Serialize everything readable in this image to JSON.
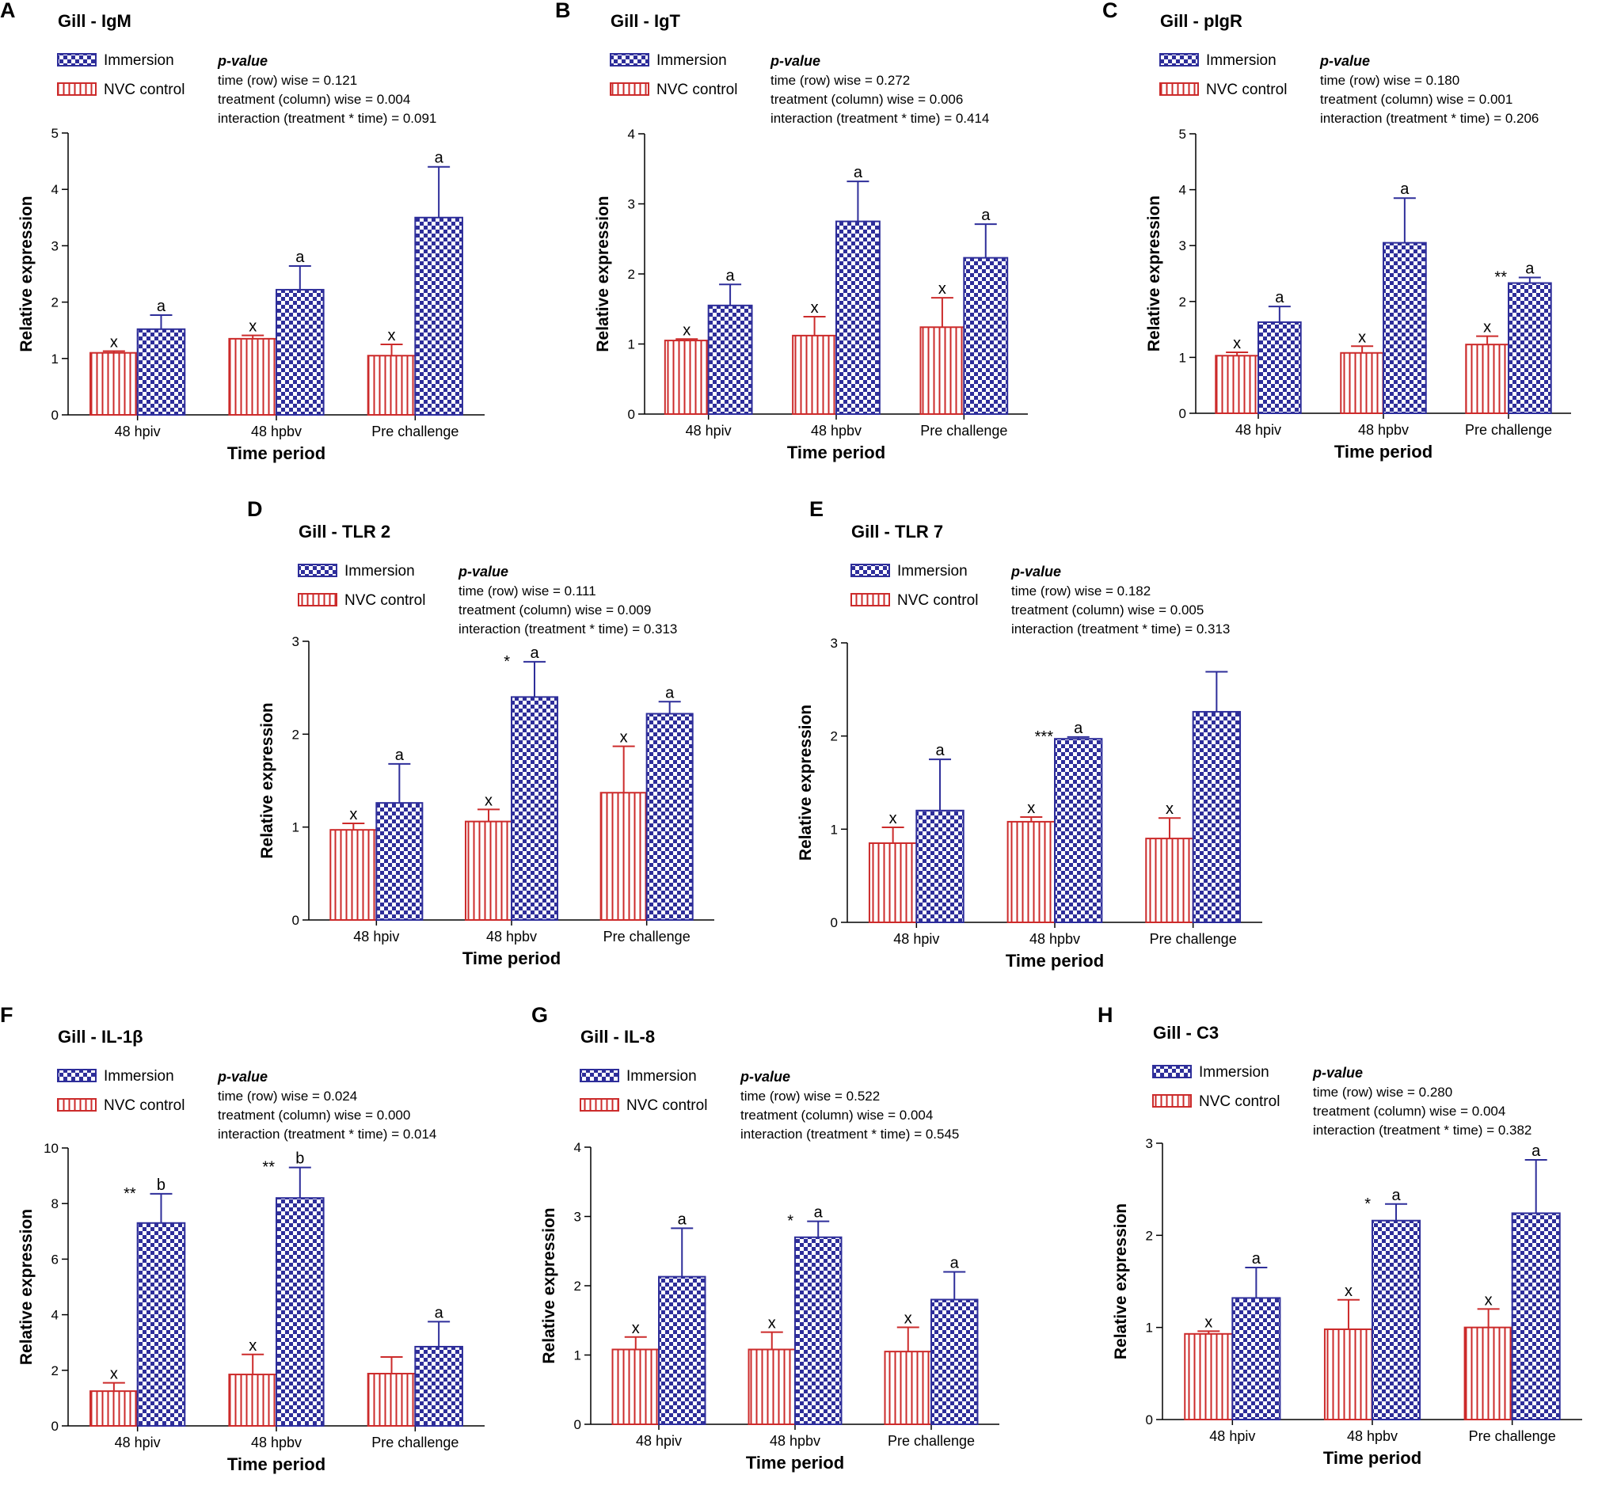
{
  "figure": {
    "categories": [
      "48 hpiv",
      "48 hpbv",
      "Pre challenge"
    ],
    "colors": {
      "immersion": "#2e2e9a",
      "control": "#cc2b2b",
      "axis": "#000000"
    },
    "legend": {
      "immersion": "Immersion",
      "control": "NVC control"
    },
    "pvalue_heading": "p-value",
    "xlabel": "Time period",
    "ylabel": "Relative expression"
  },
  "chart_data": [
    {
      "letter": "A",
      "title": "Gill - IgM",
      "type": "bar",
      "pvalues": [
        "time (row) wise = 0.121",
        "treatment (column) wise = 0.004",
        "interaction (treatment * time)  = 0.091"
      ],
      "ylim": [
        0,
        5
      ],
      "ticks": [
        "0",
        "1",
        "2",
        "3",
        "4",
        "5"
      ],
      "series": [
        {
          "name": "NVC control",
          "values": [
            1.1,
            1.35,
            1.05
          ],
          "errors": [
            0.03,
            0.06,
            0.2
          ],
          "labels": [
            "x",
            "x",
            "x"
          ],
          "stars": [
            "",
            "",
            ""
          ]
        },
        {
          "name": "Immersion",
          "values": [
            1.52,
            2.22,
            3.5
          ],
          "errors": [
            0.25,
            0.42,
            0.9
          ],
          "labels": [
            "a",
            "a",
            "a"
          ],
          "stars": [
            "",
            "",
            ""
          ]
        }
      ]
    },
    {
      "letter": "B",
      "title": "Gill - IgT",
      "type": "bar",
      "pvalues": [
        "time (row) wise = 0.272",
        "treatment (column) wise = 0.006",
        "interaction (treatment * time)  = 0.414"
      ],
      "ylim": [
        0,
        4
      ],
      "ticks": [
        "0",
        "1",
        "2",
        "3",
        "4"
      ],
      "series": [
        {
          "name": "NVC control",
          "values": [
            1.05,
            1.12,
            1.24
          ],
          "errors": [
            0.02,
            0.27,
            0.42
          ],
          "labels": [
            "x",
            "x",
            "x"
          ],
          "stars": [
            "",
            "",
            ""
          ]
        },
        {
          "name": "Immersion",
          "values": [
            1.55,
            2.75,
            2.23
          ],
          "errors": [
            0.3,
            0.57,
            0.48
          ],
          "labels": [
            "a",
            "a",
            "a"
          ],
          "stars": [
            "",
            "",
            ""
          ]
        }
      ]
    },
    {
      "letter": "C",
      "title": "Gill - pIgR",
      "type": "bar",
      "pvalues": [
        "time (row) wise = 0.180",
        "treatment (column) wise = 0.001",
        "interaction (treatment * time)  = 0.206"
      ],
      "ylim": [
        0,
        5
      ],
      "ticks": [
        "0",
        "1",
        "2",
        "3",
        "4",
        "5"
      ],
      "series": [
        {
          "name": "NVC control",
          "values": [
            1.03,
            1.08,
            1.23
          ],
          "errors": [
            0.06,
            0.12,
            0.15
          ],
          "labels": [
            "x",
            "x",
            "x"
          ],
          "stars": [
            "",
            "",
            ""
          ]
        },
        {
          "name": "Immersion",
          "values": [
            1.63,
            3.05,
            2.33
          ],
          "errors": [
            0.28,
            0.8,
            0.1
          ],
          "labels": [
            "a",
            "a",
            "a"
          ],
          "stars": [
            "",
            "",
            "**"
          ]
        }
      ]
    },
    {
      "letter": "D",
      "title": "Gill - TLR 2",
      "type": "bar",
      "pvalues": [
        "time (row) wise = 0.111",
        "treatment (column) wise = 0.009",
        "interaction (treatment * time)  = 0.313"
      ],
      "ylim": [
        0,
        3
      ],
      "ticks": [
        "0",
        "1",
        "2",
        "3"
      ],
      "series": [
        {
          "name": "NVC control",
          "values": [
            0.97,
            1.06,
            1.37
          ],
          "errors": [
            0.07,
            0.13,
            0.5
          ],
          "labels": [
            "x",
            "x",
            "x"
          ],
          "stars": [
            "",
            "",
            ""
          ]
        },
        {
          "name": "Immersion",
          "values": [
            1.26,
            2.4,
            2.22
          ],
          "errors": [
            0.42,
            0.38,
            0.13
          ],
          "labels": [
            "a",
            "a",
            "a"
          ],
          "stars": [
            "",
            "*",
            ""
          ]
        }
      ]
    },
    {
      "letter": "E",
      "title": "Gill - TLR 7",
      "type": "bar",
      "pvalues": [
        "time (row) wise = 0.182",
        "treatment (column) wise = 0.005",
        "interaction (treatment * time)  = 0.313"
      ],
      "ylim": [
        0,
        3
      ],
      "ticks": [
        "0",
        "1",
        "2",
        "3"
      ],
      "series": [
        {
          "name": "NVC control",
          "values": [
            0.85,
            1.08,
            0.9
          ],
          "errors": [
            0.17,
            0.05,
            0.22
          ],
          "labels": [
            "x",
            "x",
            "x"
          ],
          "stars": [
            "",
            "",
            ""
          ]
        },
        {
          "name": "Immersion",
          "values": [
            1.2,
            1.97,
            2.26
          ],
          "errors": [
            0.55,
            0.02,
            0.43
          ],
          "labels": [
            "a",
            "a",
            ""
          ],
          "stars": [
            "",
            "***",
            ""
          ]
        }
      ]
    },
    {
      "letter": "F",
      "title": "Gill - IL-1β",
      "type": "bar",
      "pvalues": [
        "time (row) wise = 0.024",
        "treatment (column) wise = 0.000",
        "interaction (treatment * time)  = 0.014"
      ],
      "ylim": [
        0,
        10
      ],
      "ticks": [
        "0",
        "2",
        "4",
        "6",
        "8",
        "10"
      ],
      "series": [
        {
          "name": "NVC control",
          "values": [
            1.25,
            1.85,
            1.88
          ],
          "errors": [
            0.3,
            0.72,
            0.6
          ],
          "labels": [
            "x",
            "x",
            ""
          ],
          "stars": [
            "",
            "",
            ""
          ]
        },
        {
          "name": "Immersion",
          "values": [
            7.3,
            8.2,
            2.85
          ],
          "errors": [
            1.05,
            1.1,
            0.9
          ],
          "labels": [
            "b",
            "b",
            "a"
          ],
          "stars": [
            "**",
            "**",
            ""
          ]
        }
      ]
    },
    {
      "letter": "G",
      "title": "Gill - IL-8",
      "type": "bar",
      "pvalues": [
        "time (row) wise = 0.522",
        "treatment (column) wise = 0.004",
        "interaction (treatment * time)  = 0.545"
      ],
      "ylim": [
        0,
        4
      ],
      "ticks": [
        "0",
        "1",
        "2",
        "3",
        "4"
      ],
      "series": [
        {
          "name": "NVC control",
          "values": [
            1.08,
            1.08,
            1.05
          ],
          "errors": [
            0.18,
            0.25,
            0.35
          ],
          "labels": [
            "x",
            "x",
            "x"
          ],
          "stars": [
            "",
            "",
            ""
          ]
        },
        {
          "name": "Immersion",
          "values": [
            2.13,
            2.7,
            1.8
          ],
          "errors": [
            0.7,
            0.23,
            0.4
          ],
          "labels": [
            "a",
            "a",
            "a"
          ],
          "stars": [
            "",
            "*",
            ""
          ]
        }
      ]
    },
    {
      "letter": "H",
      "title": "Gill - C3",
      "type": "bar",
      "pvalues": [
        "time (row) wise = 0.280",
        "treatment (column) wise = 0.004",
        "interaction (treatment * time)  = 0.382"
      ],
      "ylim": [
        0,
        3
      ],
      "ticks": [
        "0",
        "1",
        "2",
        "3"
      ],
      "series": [
        {
          "name": "NVC control",
          "values": [
            0.93,
            0.98,
            1.0
          ],
          "errors": [
            0.03,
            0.32,
            0.2
          ],
          "labels": [
            "x",
            "x",
            "x"
          ],
          "stars": [
            "",
            "",
            ""
          ]
        },
        {
          "name": "Immersion",
          "values": [
            1.32,
            2.16,
            2.24
          ],
          "errors": [
            0.33,
            0.18,
            0.58
          ],
          "labels": [
            "a",
            "a",
            "a"
          ],
          "stars": [
            "",
            "*",
            ""
          ]
        }
      ]
    }
  ]
}
